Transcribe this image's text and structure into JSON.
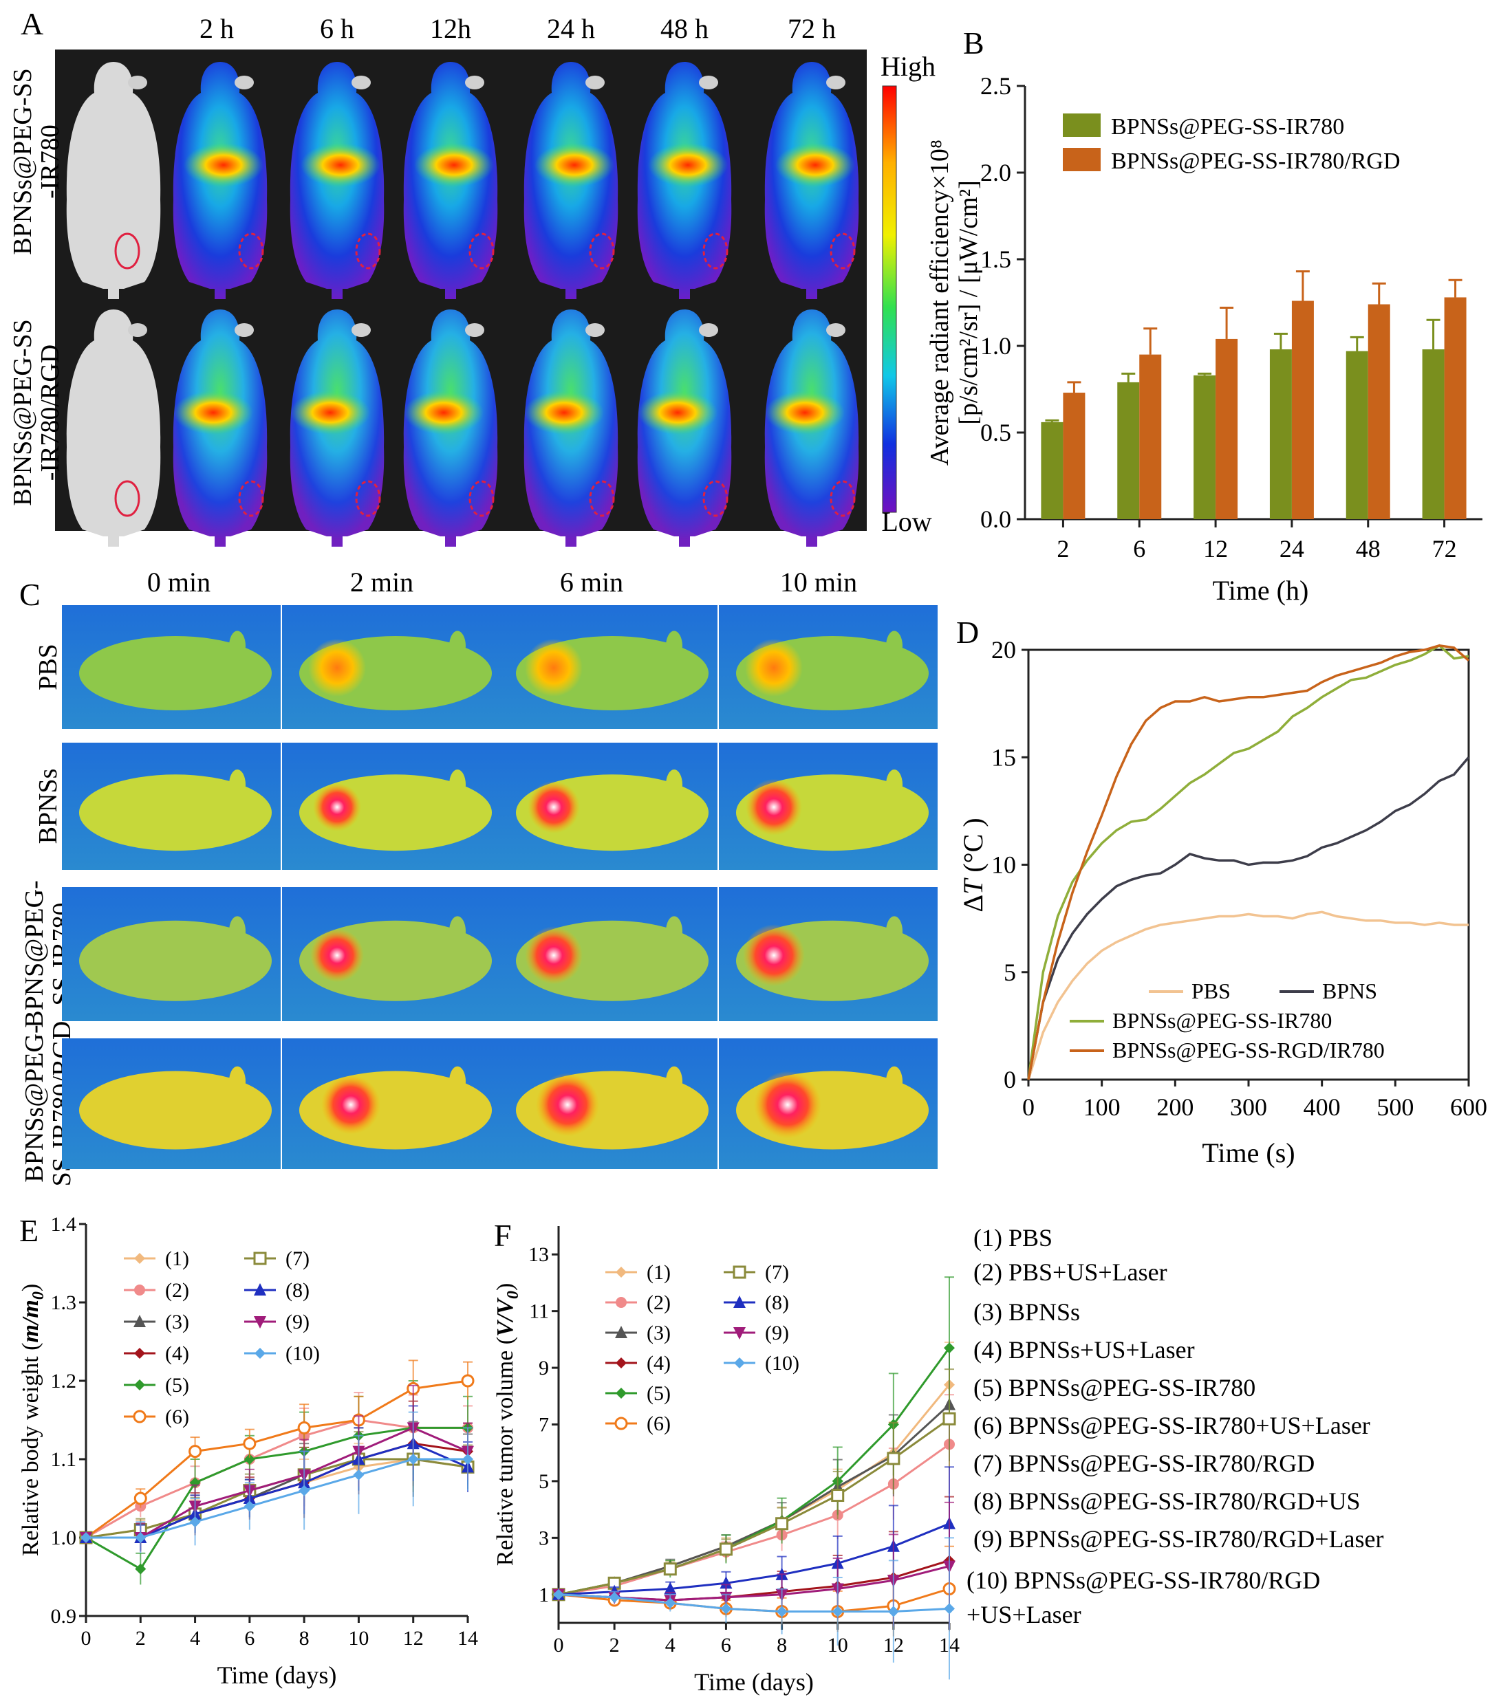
{
  "panels": {
    "A": {
      "letter": "A",
      "timepoints": [
        "2 h",
        "6 h",
        "12h",
        "24 h",
        "48 h",
        "72 h"
      ],
      "row_labels": [
        [
          "BPNSs@PEG-SS",
          "-IR780"
        ],
        [
          "BPNSs@PEG-SS",
          "-IR780/RGD"
        ]
      ],
      "scale_high": "High",
      "scale_low": "Low"
    },
    "C": {
      "letter": "C",
      "timepoints": [
        "0 min",
        "2 min",
        "6 min",
        "10 min"
      ],
      "row_labels": [
        [
          "PBS"
        ],
        [
          "BPNSs"
        ],
        [
          "BPNS@PEG-",
          "SS-IR780"
        ],
        [
          "BPNSs@PEG-",
          "SS-IR780/RGD"
        ]
      ]
    },
    "legend_list": [
      "(1) PBS",
      "(2) PBS+US+Laser",
      "(3) BPNSs",
      "(4) BPNSs+US+Laser",
      "(5) BPNSs@PEG-SS-IR780",
      "(6) BPNSs@PEG-SS-IR780+US+Laser",
      "(7) BPNSs@PEG-SS-IR780/RGD",
      "(8) BPNSs@PEG-SS-IR780/RGD+US",
      "(9) BPNSs@PEG-SS-IR780/RGD+Laser",
      "(10) BPNSs@PEG-SS-IR780/RGD",
      "+US+Laser"
    ]
  },
  "colors": {
    "olive": "#7a8f1e",
    "orange": "#c8631a",
    "pbs": "#f2c391",
    "bpns": "#3d3d4a",
    "ir780": "#8fae3a",
    "rgd": "#c8631a",
    "g1": "#f1b97e",
    "g2": "#f08a8a",
    "g3": "#555555",
    "g4": "#a3141c",
    "g5": "#2f9a2c",
    "g6": "#f07a1a",
    "g7": "#8a8a3a",
    "g8": "#1f2fc0",
    "g9": "#a01c7a",
    "g10": "#5aa8e8"
  },
  "chart_data": [
    {
      "id": "B",
      "type": "bar",
      "letter": "B",
      "categories": [
        "2",
        "6",
        "12",
        "24",
        "48",
        "72"
      ],
      "series": [
        {
          "name": "BPNSs@PEG-SS-IR780",
          "values": [
            0.56,
            0.79,
            0.83,
            0.98,
            0.97,
            0.98
          ],
          "errors": [
            0.01,
            0.05,
            0.01,
            0.09,
            0.08,
            0.17
          ]
        },
        {
          "name": "BPNSs@PEG-SS-IR780/RGD",
          "values": [
            0.73,
            0.95,
            1.04,
            1.26,
            1.24,
            1.28
          ],
          "errors": [
            0.06,
            0.15,
            0.18,
            0.17,
            0.12,
            0.1
          ]
        }
      ],
      "ylim": [
        0,
        2.5
      ],
      "yticks": [
        "0.0",
        "0.5",
        "1.0",
        "1.5",
        "2.0",
        "2.5"
      ],
      "xlabel": "Time (h)",
      "ylabel_line1": "Average radiant efficiency×10⁸",
      "ylabel_line2": "[p/s/cm²/sr] / [μW/cm²]"
    },
    {
      "id": "D",
      "type": "line",
      "letter": "D",
      "x": [
        0,
        20,
        40,
        60,
        80,
        100,
        120,
        140,
        160,
        180,
        200,
        220,
        240,
        260,
        280,
        300,
        320,
        340,
        360,
        380,
        400,
        420,
        440,
        460,
        480,
        500,
        520,
        540,
        560,
        580,
        600
      ],
      "series": [
        {
          "name": "PBS",
          "values": [
            0,
            2.2,
            3.6,
            4.6,
            5.4,
            6.0,
            6.4,
            6.7,
            7.0,
            7.2,
            7.3,
            7.4,
            7.5,
            7.6,
            7.6,
            7.7,
            7.6,
            7.6,
            7.5,
            7.7,
            7.8,
            7.6,
            7.5,
            7.4,
            7.4,
            7.3,
            7.3,
            7.2,
            7.3,
            7.2,
            7.2
          ]
        },
        {
          "name": "BPNS",
          "values": [
            0,
            3.6,
            5.6,
            6.8,
            7.7,
            8.4,
            9.0,
            9.3,
            9.5,
            9.6,
            10.0,
            10.5,
            10.3,
            10.2,
            10.2,
            10.0,
            10.1,
            10.1,
            10.2,
            10.4,
            10.8,
            11.0,
            11.3,
            11.6,
            12.0,
            12.5,
            12.8,
            13.3,
            13.9,
            14.2,
            15.0
          ]
        },
        {
          "name": "BPNSs@PEG-SS-IR780",
          "values": [
            0,
            5.0,
            7.6,
            9.2,
            10.2,
            11.0,
            11.6,
            12.0,
            12.1,
            12.6,
            13.2,
            13.8,
            14.2,
            14.7,
            15.2,
            15.4,
            15.8,
            16.2,
            16.9,
            17.3,
            17.8,
            18.2,
            18.6,
            18.7,
            19.0,
            19.3,
            19.5,
            19.8,
            20.2,
            19.6,
            19.7
          ]
        },
        {
          "name": "BPNSs@PEG-SS-RGD/IR780",
          "values": [
            0,
            3.6,
            6.4,
            8.7,
            10.6,
            12.3,
            14.1,
            15.6,
            16.7,
            17.3,
            17.6,
            17.6,
            17.8,
            17.6,
            17.7,
            17.8,
            17.8,
            17.9,
            18.0,
            18.1,
            18.5,
            18.8,
            19.0,
            19.2,
            19.4,
            19.7,
            19.9,
            20.0,
            20.2,
            20.1,
            19.5
          ]
        }
      ],
      "xlim": [
        0,
        600
      ],
      "ylim": [
        0,
        20
      ],
      "xticks": [
        "0",
        "100",
        "200",
        "300",
        "400",
        "500",
        "600"
      ],
      "yticks": [
        "0",
        "5",
        "10",
        "15",
        "20"
      ],
      "xlabel": "Time (s)",
      "ylabel_delta": "Δ",
      "ylabel_var": "T",
      "ylabel_unit": " (°C )"
    },
    {
      "id": "E",
      "type": "line",
      "letter": "E",
      "x": [
        0,
        2,
        4,
        6,
        8,
        10,
        12,
        14
      ],
      "series": [
        {
          "name": "(1)",
          "values": [
            1.0,
            1.01,
            1.03,
            1.05,
            1.07,
            1.09,
            1.1,
            1.09
          ]
        },
        {
          "name": "(2)",
          "values": [
            1.0,
            1.04,
            1.07,
            1.1,
            1.13,
            1.15,
            1.14,
            1.14
          ]
        },
        {
          "name": "(3)",
          "values": [
            1.0,
            1.0,
            1.03,
            1.05,
            1.08,
            1.1,
            1.1,
            1.1
          ]
        },
        {
          "name": "(4)",
          "values": [
            1.0,
            1.0,
            1.03,
            1.05,
            1.07,
            1.1,
            1.12,
            1.11
          ]
        },
        {
          "name": "(5)",
          "values": [
            1.0,
            0.96,
            1.07,
            1.1,
            1.11,
            1.13,
            1.14,
            1.14
          ]
        },
        {
          "name": "(6)",
          "values": [
            1.0,
            1.05,
            1.11,
            1.12,
            1.14,
            1.15,
            1.19,
            1.2
          ]
        },
        {
          "name": "(7)",
          "values": [
            1.0,
            1.01,
            1.03,
            1.06,
            1.08,
            1.1,
            1.1,
            1.09
          ]
        },
        {
          "name": "(8)",
          "values": [
            1.0,
            1.0,
            1.03,
            1.05,
            1.07,
            1.1,
            1.12,
            1.09
          ]
        },
        {
          "name": "(9)",
          "values": [
            1.0,
            1.0,
            1.04,
            1.06,
            1.08,
            1.11,
            1.14,
            1.11
          ]
        },
        {
          "name": "(10)",
          "values": [
            1.0,
            1.0,
            1.02,
            1.04,
            1.06,
            1.08,
            1.1,
            1.1
          ]
        }
      ],
      "error": [
        0,
        0.02,
        0.03,
        0.03,
        0.05,
        0.05,
        0.06,
        0.04
      ],
      "xlim": [
        0,
        14
      ],
      "ylim": [
        0.9,
        1.4
      ],
      "xticks": [
        "0",
        "2",
        "4",
        "6",
        "8",
        "10",
        "12",
        "14"
      ],
      "yticks": [
        "0.9",
        "1.0",
        "1.1",
        "1.2",
        "1.3",
        "1.4"
      ],
      "xlabel": "Time (days)",
      "ylabel_text": "Relative body weight (",
      "ylabel_math": "m/m",
      "ylabel_sub": "0",
      "ylabel_close": ")"
    },
    {
      "id": "F",
      "type": "line",
      "letter": "F",
      "x": [
        0,
        2,
        4,
        6,
        8,
        10,
        12,
        14
      ],
      "series": [
        {
          "name": "(1)",
          "values": [
            1.0,
            1.4,
            2.0,
            2.7,
            3.6,
            4.7,
            6.0,
            8.4
          ]
        },
        {
          "name": "(2)",
          "values": [
            1.0,
            1.3,
            1.9,
            2.5,
            3.1,
            3.8,
            4.9,
            6.3
          ]
        },
        {
          "name": "(3)",
          "values": [
            1.0,
            1.4,
            2.0,
            2.7,
            3.6,
            4.8,
            5.9,
            7.7
          ]
        },
        {
          "name": "(4)",
          "values": [
            1.0,
            0.9,
            0.8,
            0.9,
            1.1,
            1.3,
            1.6,
            2.2
          ]
        },
        {
          "name": "(5)",
          "values": [
            1.0,
            1.4,
            1.9,
            2.6,
            3.6,
            5.0,
            7.0,
            9.7
          ]
        },
        {
          "name": "(6)",
          "values": [
            1.0,
            0.8,
            0.7,
            0.5,
            0.4,
            0.4,
            0.6,
            1.2
          ]
        },
        {
          "name": "(7)",
          "values": [
            1.0,
            1.4,
            1.9,
            2.6,
            3.5,
            4.5,
            5.8,
            7.2
          ]
        },
        {
          "name": "(8)",
          "values": [
            1.0,
            1.1,
            1.2,
            1.4,
            1.7,
            2.1,
            2.7,
            3.5
          ]
        },
        {
          "name": "(9)",
          "values": [
            1.0,
            0.9,
            0.8,
            0.9,
            1.0,
            1.2,
            1.5,
            2.0
          ]
        },
        {
          "name": "(10)",
          "values": [
            1.0,
            0.9,
            0.7,
            0.5,
            0.4,
            0.4,
            0.4,
            0.5
          ]
        }
      ],
      "error": [
        0,
        0.2,
        0.3,
        0.5,
        0.8,
        1.2,
        1.8,
        2.5
      ],
      "xlim": [
        0,
        14
      ],
      "ylim": [
        0,
        14
      ],
      "xticks": [
        "0",
        "2",
        "4",
        "6",
        "8",
        "10",
        "12",
        "14"
      ],
      "yticks": [
        "1",
        "3",
        "5",
        "7",
        "9",
        "11",
        "13"
      ],
      "ytick_values": [
        1,
        3,
        5,
        7,
        9,
        11,
        13
      ],
      "xlabel": "Time (days)",
      "ylabel_text": "Relative tumor volume (",
      "ylabel_math": "V/V",
      "ylabel_sub": "0",
      "ylabel_close": ")"
    }
  ]
}
